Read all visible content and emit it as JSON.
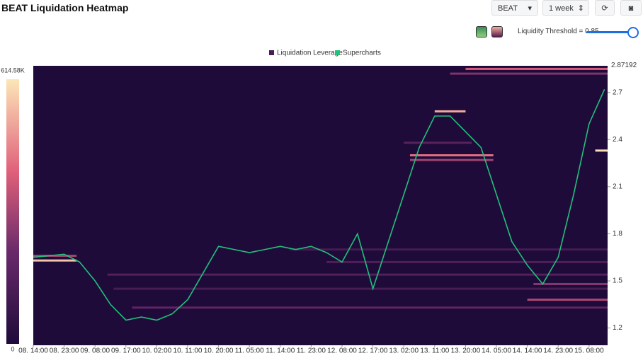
{
  "header": {
    "title": "BEAT Liquidation Heatmap",
    "symbol": "BEAT",
    "range": "1 week",
    "threshold": "Liquidity Threshold = 0.85"
  },
  "legend": [
    "Liquidation Leverage",
    "Supercharts"
  ],
  "chart_data": {
    "type": "heatmap",
    "colorbar": {
      "lim": [
        0,
        614580
      ],
      "ticks": [
        {
          "value": 614580,
          "label": "614.58K"
        },
        0
      ]
    },
    "xlim": [
      0,
      18.6
    ],
    "xticks": [
      {
        "value": 0,
        "label": "08. 14:00"
      },
      {
        "value": 1,
        "label": "08. 23:00"
      },
      {
        "value": 2,
        "label": "09. 08:00"
      },
      {
        "value": 3,
        "label": "09. 17:00"
      },
      {
        "value": 4,
        "label": "10. 02:00"
      },
      {
        "value": 5,
        "label": "10. 11:00"
      },
      {
        "value": 6,
        "label": "10. 20:00"
      },
      {
        "value": 7,
        "label": "11. 05:00"
      },
      {
        "value": 8,
        "label": "11. 14:00"
      },
      {
        "value": 9,
        "label": "11. 23:00"
      },
      {
        "value": 10,
        "label": "12. 08:00"
      },
      {
        "value": 11,
        "label": "12. 17:00"
      },
      {
        "value": 12,
        "label": "13. 02:00"
      },
      {
        "value": 13,
        "label": "13. 11:00"
      },
      {
        "value": 14,
        "label": "13. 20:00"
      },
      {
        "value": 15,
        "label": "14. 05:00"
      },
      {
        "value": 16,
        "label": "14. 14:00"
      },
      {
        "value": 17,
        "label": "14. 23:00"
      },
      {
        "value": 18,
        "label": "15. 08:00"
      }
    ],
    "ylim": [
      1.09,
      2.87
    ],
    "yticks": [
      1.2,
      1.5,
      1.8,
      2.1,
      2.4,
      2.7
    ],
    "last_price": 2.87192,
    "bands": [
      {
        "price": 1.63,
        "start": 0,
        "end": 1.4,
        "value": 560000
      },
      {
        "price": 1.66,
        "start": 0,
        "end": 1.4,
        "value": 300000
      },
      {
        "price": 1.54,
        "start": 2.4,
        "end": 18.6,
        "value": 150000
      },
      {
        "price": 1.45,
        "start": 2.6,
        "end": 18.6,
        "value": 120000
      },
      {
        "price": 1.33,
        "start": 3.2,
        "end": 18.6,
        "value": 180000
      },
      {
        "price": 1.7,
        "start": 8.3,
        "end": 18.6,
        "value": 110000
      },
      {
        "price": 1.62,
        "start": 9.5,
        "end": 18.6,
        "value": 140000
      },
      {
        "price": 1.38,
        "start": 16,
        "end": 18.6,
        "value": 320000
      },
      {
        "price": 1.48,
        "start": 16.2,
        "end": 18.6,
        "value": 260000
      },
      {
        "price": 2.27,
        "start": 12.2,
        "end": 14.9,
        "value": 300000
      },
      {
        "price": 2.3,
        "start": 12.2,
        "end": 14.9,
        "value": 420000
      },
      {
        "price": 2.58,
        "start": 13,
        "end": 14,
        "value": 520000
      },
      {
        "price": 2.82,
        "start": 13.5,
        "end": 18.6,
        "value": 250000
      },
      {
        "price": 2.85,
        "start": 14,
        "end": 18.6,
        "value": 380000
      },
      {
        "price": 2.33,
        "start": 18.2,
        "end": 18.6,
        "value": 600000
      },
      {
        "price": 2.38,
        "start": 12,
        "end": 14.2,
        "value": 160000
      }
    ],
    "series": [
      {
        "name": "Supercharts",
        "color": "#22c07a",
        "x": [
          0,
          0.5,
          1,
          1.5,
          2,
          2.5,
          3,
          3.5,
          4,
          4.5,
          5,
          5.5,
          6,
          6.5,
          7,
          7.5,
          8,
          8.5,
          9,
          9.5,
          10,
          10.5,
          11,
          11.5,
          12,
          12.5,
          13,
          13.5,
          14,
          14.5,
          15,
          15.5,
          16,
          16.5,
          17,
          17.5,
          18,
          18.5
        ],
        "values": [
          1.65,
          1.66,
          1.67,
          1.62,
          1.5,
          1.35,
          1.25,
          1.27,
          1.25,
          1.29,
          1.38,
          1.55,
          1.72,
          1.7,
          1.68,
          1.7,
          1.72,
          1.7,
          1.72,
          1.68,
          1.62,
          1.8,
          1.45,
          1.75,
          2.05,
          2.35,
          2.55,
          2.55,
          2.45,
          2.35,
          2.05,
          1.75,
          1.6,
          1.48,
          1.65,
          2.05,
          2.5,
          2.72
        ]
      }
    ]
  }
}
